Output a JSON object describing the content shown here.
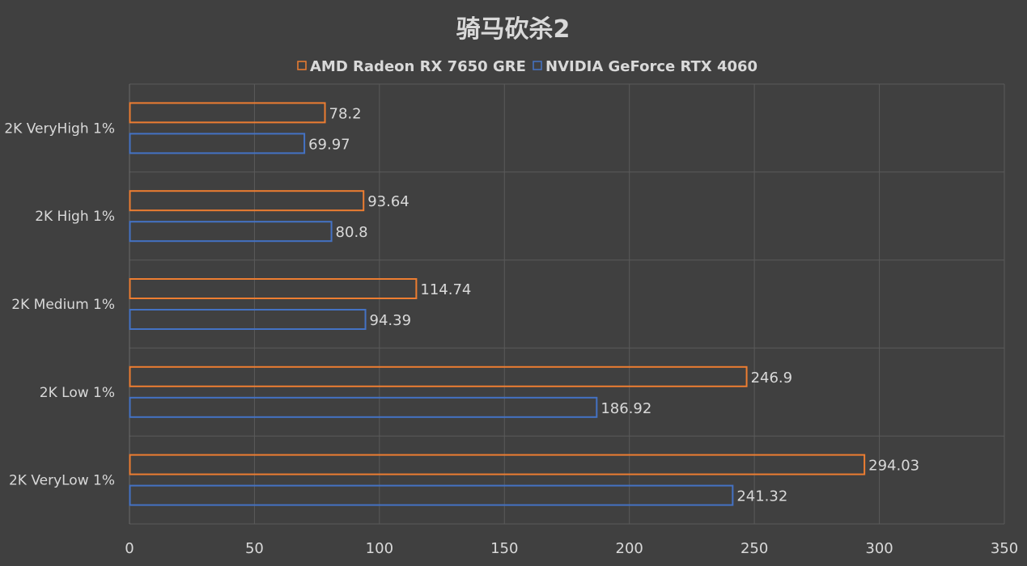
{
  "chart_data": {
    "type": "bar",
    "orientation": "horizontal",
    "title": "骑马砍杀2",
    "categories": [
      "2K VeryHigh 1%",
      "2K High 1%",
      "2K Medium 1%",
      "2K Low 1%",
      "2K VeryLow 1%"
    ],
    "series": [
      {
        "name": "AMD Radeon RX 7650 GRE",
        "color": "#ed7d31",
        "values": [
          78.2,
          93.64,
          114.74,
          246.9,
          294.03
        ]
      },
      {
        "name": "NVIDIA GeForce RTX 4060",
        "color": "#4472c4",
        "values": [
          69.97,
          80.8,
          94.39,
          186.92,
          241.32
        ]
      }
    ],
    "xlim": [
      0,
      350
    ],
    "xticks": [
      0,
      50,
      100,
      150,
      200,
      250,
      300,
      350
    ],
    "xlabel": "",
    "ylabel": "",
    "grid": true,
    "legend_position": "top"
  }
}
